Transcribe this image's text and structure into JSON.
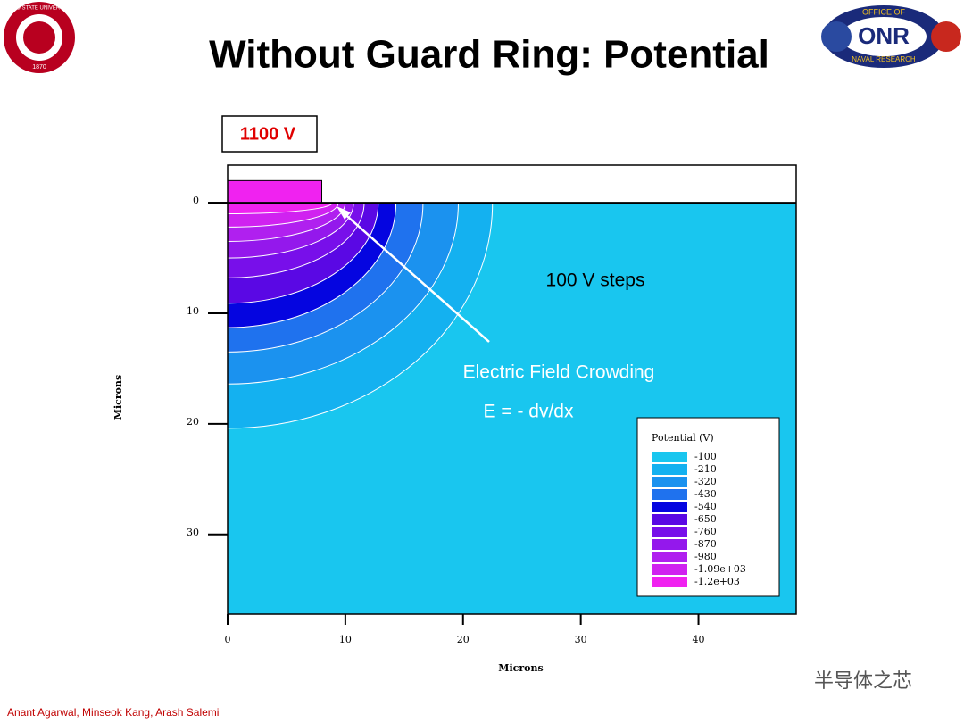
{
  "header": {
    "title": "Without Guard Ring: Potential"
  },
  "logos": {
    "left_ring": "OHIO STATE UNIVERSITY",
    "left_year": "1870",
    "right_top": "OFFICE OF",
    "right_mid": "ONR",
    "right_bottom": "NAVAL RESEARCH"
  },
  "footer": {
    "authors": "Anant Agarwal, Minseok Kang, Arash Salemi",
    "watermark": "半导体之芯"
  },
  "chart_data": {
    "type": "contour",
    "bias_label": "1100 V",
    "annotations": [
      "100 V steps",
      "Electric Field Crowding",
      "E = - dv/dx"
    ],
    "x_label": "Microns",
    "y_label": "Microns",
    "xlim": [
      0,
      48.3
    ],
    "ylim": [
      -3.4,
      37.2
    ],
    "xticks": [
      0,
      10,
      20,
      30,
      40
    ],
    "yticks": [
      0,
      10,
      20,
      30
    ],
    "legend_title": "Potential (V)",
    "levels": [
      -100,
      -210,
      -320,
      -430,
      -540,
      -650,
      -760,
      -870,
      -980,
      {
        "value": -1090,
        "label": "-1.09e+03"
      },
      {
        "value": -1200,
        "label": "-1.2e+03"
      }
    ],
    "colors": [
      "#19c6ef",
      "#14b1f0",
      "#1b92ef",
      "#1f72ee",
      "#0505e0",
      "#5a08e4",
      "#780fea",
      "#9418ec",
      "#b020ef",
      "#d022f0",
      "#f022f0"
    ]
  }
}
